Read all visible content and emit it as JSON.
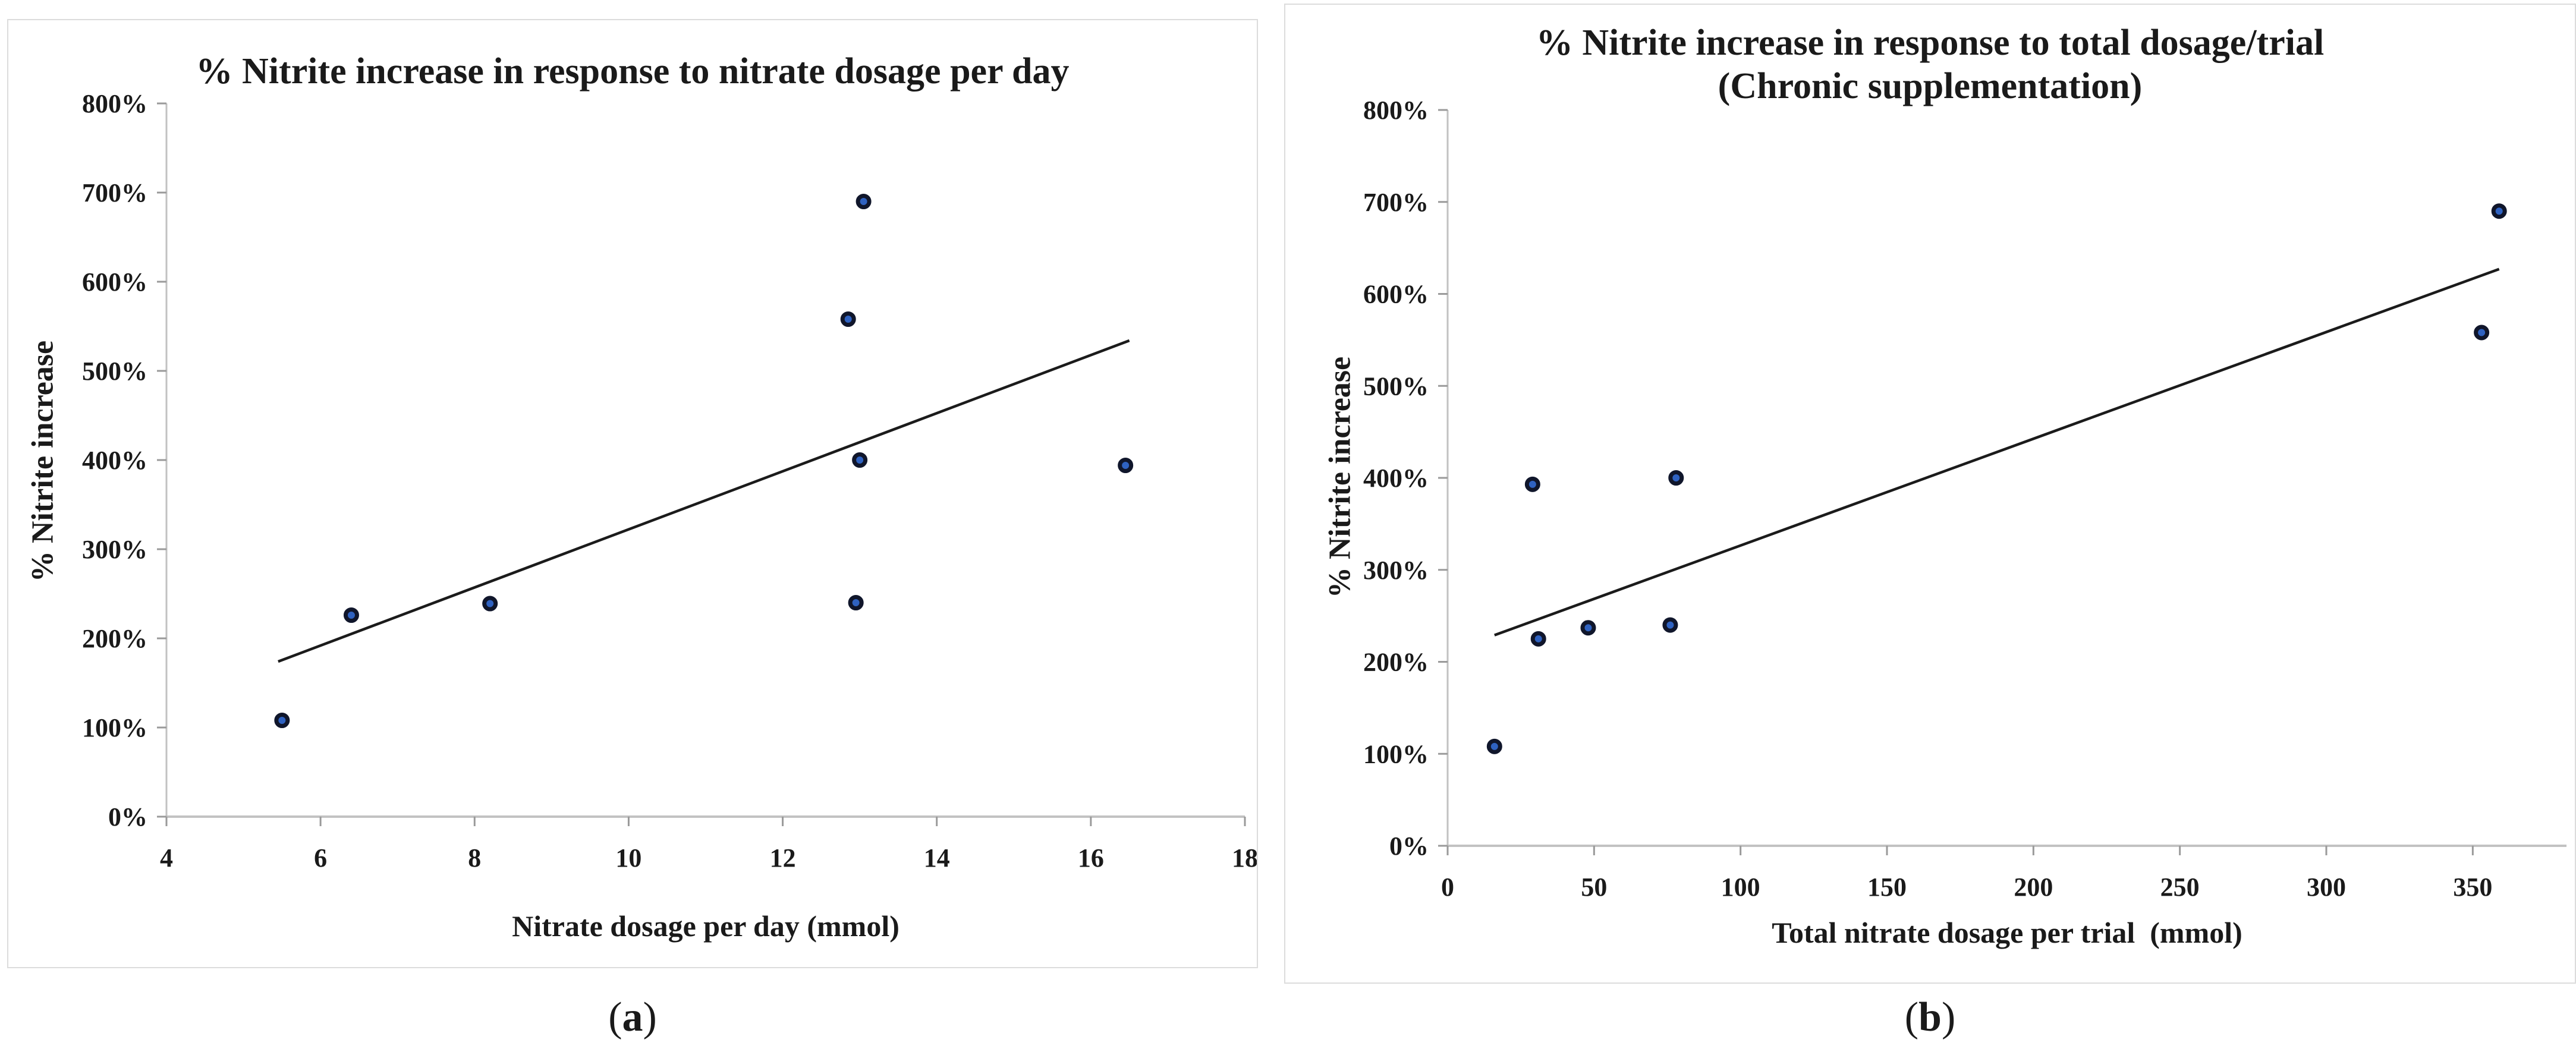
{
  "captions": [
    "(a)",
    "(b)"
  ],
  "caption_letters": {
    "a": "a",
    "b": "b"
  },
  "colors": {
    "point_fill": "#2f62c1",
    "point_stroke": "#10162b",
    "trendline": "#1b1b1b",
    "axis_line": "#c2c2c2",
    "tick_mark": "#9a9a9a",
    "text": "#1a1a1a",
    "panel_border": "#dcdcdc"
  },
  "chart_data": [
    {
      "type": "scatter",
      "title": "% Nitrite increase in response to nitrate dosage per day",
      "subtitle": "",
      "xlabel": "Nitrate dosage per day (mmol)",
      "ylabel": "% Nitrite increase",
      "xlim": [
        4,
        18
      ],
      "ylim": [
        0,
        800
      ],
      "grid": false,
      "legend": "none",
      "xticks": [
        [
          4,
          "4"
        ],
        [
          6,
          "6"
        ],
        [
          8,
          "8"
        ],
        [
          10,
          "10"
        ],
        [
          12,
          "12"
        ],
        [
          14,
          "14"
        ],
        [
          16,
          "16"
        ],
        [
          18,
          "18"
        ]
      ],
      "yticks": [
        [
          0,
          "0%"
        ],
        [
          100,
          "100%"
        ],
        [
          200,
          "200%"
        ],
        [
          300,
          "300%"
        ],
        [
          400,
          "400%"
        ],
        [
          500,
          "500%"
        ],
        [
          600,
          "600%"
        ],
        [
          700,
          "700%"
        ],
        [
          800,
          "800%"
        ]
      ],
      "points": [
        [
          5.5,
          108
        ],
        [
          6.4,
          226
        ],
        [
          8.2,
          239
        ],
        [
          12.85,
          558
        ],
        [
          12.95,
          240
        ],
        [
          13.05,
          690
        ],
        [
          13.0,
          400
        ],
        [
          16.45,
          394
        ]
      ],
      "trendline": {
        "x1": 5.45,
        "y1": 174,
        "x2": 16.5,
        "y2": 534
      }
    },
    {
      "type": "scatter",
      "title": "% Nitrite increase in response to total dosage/trial",
      "subtitle": "(Chronic supplementation)",
      "xlabel": "Total nitrate dosage per trial  (mmol)",
      "ylabel": "% Nitrite increase",
      "xlim": [
        0,
        382
      ],
      "ylim": [
        0,
        800
      ],
      "grid": false,
      "legend": "none",
      "xticks": [
        [
          0,
          "0"
        ],
        [
          50,
          "50"
        ],
        [
          100,
          "100"
        ],
        [
          150,
          "150"
        ],
        [
          200,
          "200"
        ],
        [
          250,
          "250"
        ],
        [
          300,
          "300"
        ],
        [
          350,
          "350"
        ]
      ],
      "yticks": [
        [
          0,
          "0%"
        ],
        [
          100,
          "100%"
        ],
        [
          200,
          "200%"
        ],
        [
          300,
          "300%"
        ],
        [
          400,
          "400%"
        ],
        [
          500,
          "500%"
        ],
        [
          600,
          "600%"
        ],
        [
          700,
          "700%"
        ],
        [
          800,
          "800%"
        ]
      ],
      "points": [
        [
          16,
          108
        ],
        [
          29,
          393
        ],
        [
          31,
          225
        ],
        [
          48,
          237
        ],
        [
          76,
          240
        ],
        [
          78,
          400
        ],
        [
          353,
          558
        ],
        [
          359,
          690
        ]
      ],
      "trendline": {
        "x1": 16,
        "y1": 229,
        "x2": 359,
        "y2": 627
      }
    }
  ]
}
